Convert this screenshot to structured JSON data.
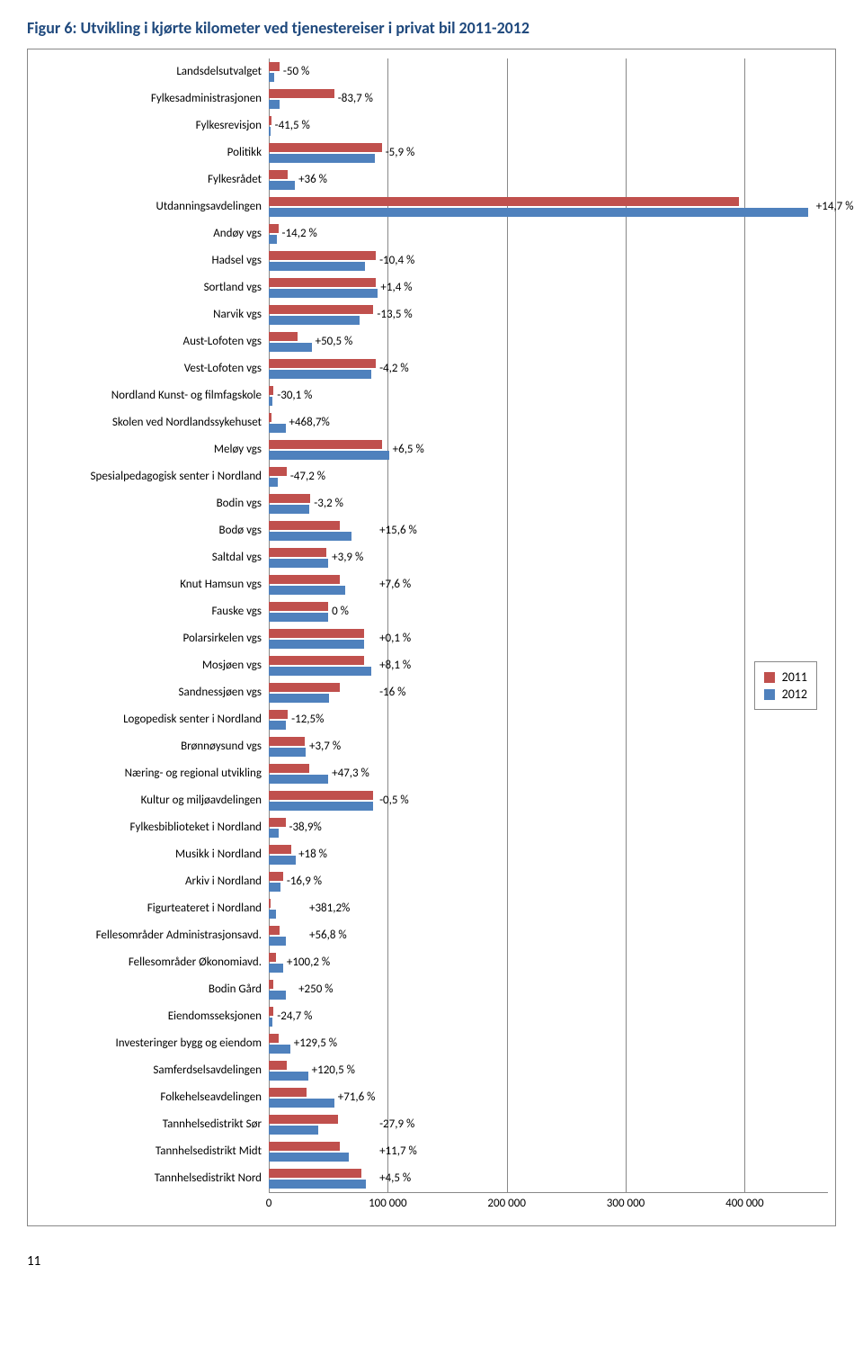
{
  "title": "Figur 6: Utvikling i kjørte kilometer ved tjenestereiser i privat bil 2011-2012",
  "chart": {
    "type": "bar",
    "background_color": "#ffffff",
    "grid_color": "#888888",
    "label_fontsize": 13,
    "title_fontsize": 18,
    "title_color": "#1f497d",
    "xmax": 470000,
    "xticks": [
      {
        "pos": 0,
        "label": "0"
      },
      {
        "pos": 100000,
        "label": "100 000"
      },
      {
        "pos": 200000,
        "label": "200 000"
      },
      {
        "pos": 300000,
        "label": "300 000"
      },
      {
        "pos": 400000,
        "label": "400 000"
      }
    ],
    "series_colors": {
      "2011": "#c0504d",
      "2012": "#4f81bd"
    },
    "legend": [
      {
        "label": "2011",
        "color": "#c0504d"
      },
      {
        "label": "2012",
        "color": "#4f81bd"
      }
    ],
    "rows": [
      {
        "label": "Landsdelsutvalget",
        "v2011": 9000,
        "v2012": 4500,
        "ann": "-50 %",
        "ann_x": 12000
      },
      {
        "label": "Fylkesadministrasjonen",
        "v2011": 55000,
        "v2012": 9000,
        "ann": "-83,7 %",
        "ann_x": 58000
      },
      {
        "label": "Fylkesrevisjon",
        "v2011": 2000,
        "v2012": 1200,
        "ann": "-41,5 %",
        "ann_x": 5000
      },
      {
        "label": "Politikk",
        "v2011": 95000,
        "v2012": 89000,
        "ann": "-5,9 %",
        "ann_x": 98000
      },
      {
        "label": "Fylkesrådet",
        "v2011": 16000,
        "v2012": 22000,
        "ann": "+36 %",
        "ann_x": 25000
      },
      {
        "label": "Utdanningsavdelingen",
        "v2011": 395000,
        "v2012": 453000,
        "ann": "+14,7 %",
        "ann_x": 460000
      },
      {
        "label": "Andøy vgs",
        "v2011": 8000,
        "v2012": 6900,
        "ann": "-14,2 %",
        "ann_x": 11000
      },
      {
        "label": "Hadsel vgs",
        "v2011": 90000,
        "v2012": 80600,
        "ann": "-10,4 %",
        "ann_x": 93000
      },
      {
        "label": "Sortland vgs",
        "v2011": 90000,
        "v2012": 91300,
        "ann": "+1,4 %",
        "ann_x": 94000
      },
      {
        "label": "Narvik vgs",
        "v2011": 88000,
        "v2012": 76100,
        "ann": "-13,5 %",
        "ann_x": 91000
      },
      {
        "label": "Aust-Lofoten vgs",
        "v2011": 24000,
        "v2012": 36100,
        "ann": "+50,5 %",
        "ann_x": 39000
      },
      {
        "label": "Vest-Lofoten vgs",
        "v2011": 90000,
        "v2012": 86200,
        "ann": "-4,2 %",
        "ann_x": 93000
      },
      {
        "label": "Nordland Kunst- og filmfagskole",
        "v2011": 4000,
        "v2012": 2800,
        "ann": "-30,1 %",
        "ann_x": 7000
      },
      {
        "label": "Skolen ved Nordlandssykehuset",
        "v2011": 2500,
        "v2012": 14200,
        "ann": "+468,7%",
        "ann_x": 17000
      },
      {
        "label": "Meløy vgs",
        "v2011": 95000,
        "v2012": 101200,
        "ann": "+6,5 %",
        "ann_x": 104000
      },
      {
        "label": "Spesialpedagogisk senter i Nordland",
        "v2011": 15000,
        "v2012": 7900,
        "ann": "-47,2 %",
        "ann_x": 18000
      },
      {
        "label": "Bodin vgs",
        "v2011": 35000,
        "v2012": 33900,
        "ann": "-3,2 %",
        "ann_x": 38000
      },
      {
        "label": "Bodø vgs",
        "v2011": 60000,
        "v2012": 69400,
        "ann": "+15,6 %",
        "ann_x": 93000
      },
      {
        "label": "Saltdal vgs",
        "v2011": 48000,
        "v2012": 49900,
        "ann": "+3,9 %",
        "ann_x": 53000
      },
      {
        "label": "Knut Hamsun vgs",
        "v2011": 60000,
        "v2012": 64600,
        "ann": "+7,6 %",
        "ann_x": 93000
      },
      {
        "label": "Fauske vgs",
        "v2011": 50000,
        "v2012": 50000,
        "ann": "0 %",
        "ann_x": 53000
      },
      {
        "label": "Polarsirkelen vgs",
        "v2011": 80000,
        "v2012": 80100,
        "ann": "+0,1 %",
        "ann_x": 93000
      },
      {
        "label": "Mosjøen vgs",
        "v2011": 80000,
        "v2012": 86500,
        "ann": "+8,1 %",
        "ann_x": 93000
      },
      {
        "label": "Sandnessjøen vgs",
        "v2011": 60000,
        "v2012": 50400,
        "ann": "-16 %",
        "ann_x": 93000
      },
      {
        "label": "Logopedisk senter i Nordland",
        "v2011": 16000,
        "v2012": 14000,
        "ann": "-12,5%",
        "ann_x": 19000
      },
      {
        "label": "Brønnøysund vgs",
        "v2011": 30000,
        "v2012": 31100,
        "ann": "+3,7 %",
        "ann_x": 34000
      },
      {
        "label": "Næring- og regional utvikling",
        "v2011": 34000,
        "v2012": 50100,
        "ann": "+47,3 %",
        "ann_x": 53000
      },
      {
        "label": "Kultur og miljøavdelingen",
        "v2011": 88000,
        "v2012": 87600,
        "ann": "-0,5 %",
        "ann_x": 93000
      },
      {
        "label": "Fylkesbiblioteket i Nordland",
        "v2011": 14000,
        "v2012": 8600,
        "ann": "-38,9%",
        "ann_x": 17000
      },
      {
        "label": "Musikk i Nordland",
        "v2011": 19000,
        "v2012": 22400,
        "ann": "+18 %",
        "ann_x": 25000
      },
      {
        "label": "Arkiv i Nordland",
        "v2011": 12000,
        "v2012": 10000,
        "ann": "-16,9 %",
        "ann_x": 15000
      },
      {
        "label": "Figurteateret i Nordland",
        "v2011": 1200,
        "v2012": 5800,
        "ann": "+381,2%",
        "ann_x": 34000
      },
      {
        "label": "Fellesområder Administrasjonsavd.",
        "v2011": 9000,
        "v2012": 14100,
        "ann": "+56,8 %",
        "ann_x": 34000
      },
      {
        "label": "Fellesområder Økonomiavd.",
        "v2011": 6000,
        "v2012": 12000,
        "ann": "+100,2 %",
        "ann_x": 15000
      },
      {
        "label": "Bodin Gård",
        "v2011": 4000,
        "v2012": 14000,
        "ann": "+250 %",
        "ann_x": 25000
      },
      {
        "label": "Eiendomsseksjonen",
        "v2011": 4000,
        "v2012": 3000,
        "ann": "-24,7 %",
        "ann_x": 7000
      },
      {
        "label": "Investeringer bygg og eiendom",
        "v2011": 8000,
        "v2012": 18400,
        "ann": "+129,5 %",
        "ann_x": 21000
      },
      {
        "label": "Samferdselsavdelingen",
        "v2011": 15000,
        "v2012": 33100,
        "ann": "+120,5 %",
        "ann_x": 36000
      },
      {
        "label": "Folkehelseavdelingen",
        "v2011": 32000,
        "v2012": 54900,
        "ann": "+71,6 %",
        "ann_x": 58000
      },
      {
        "label": "Tannhelsedistrikt Sør",
        "v2011": 58000,
        "v2012": 41800,
        "ann": "-27,9 %",
        "ann_x": 93000
      },
      {
        "label": "Tannhelsedistrikt Midt",
        "v2011": 60000,
        "v2012": 67000,
        "ann": "+11,7 %",
        "ann_x": 93000
      },
      {
        "label": "Tannhelsedistrikt Nord",
        "v2011": 78000,
        "v2012": 81500,
        "ann": "+4,5 %",
        "ann_x": 93000
      }
    ]
  },
  "page_num": "11"
}
